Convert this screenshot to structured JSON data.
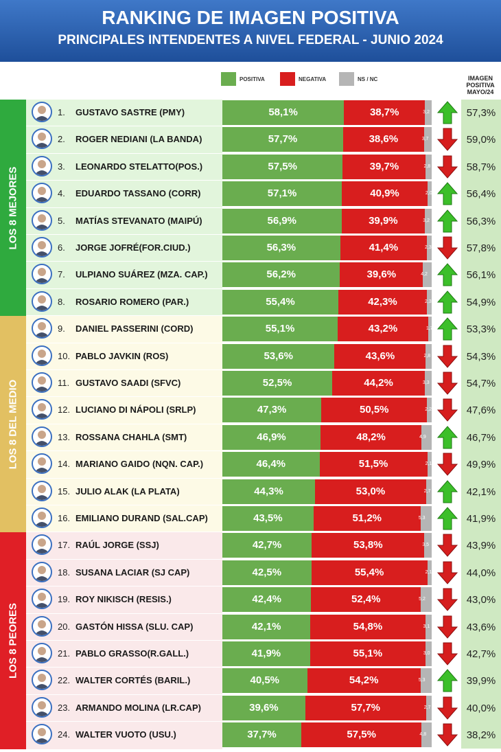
{
  "header": {
    "title": "RANKING DE IMAGEN POSITIVA",
    "subtitle": "PRINCIPALES INTENDENTES A NIVEL FEDERAL - JUNIO 2024"
  },
  "legend": {
    "positive": "POSITIVA",
    "negative": "NEGATIVA",
    "nsnc": "NS / NC"
  },
  "column_header": "IMAGEN POSITIVA MAYO/24",
  "groups": [
    {
      "label": "LOS 8 MEJORES",
      "color": "#2faa3e",
      "bg": "#e2f5dc"
    },
    {
      "label": "LOS 8 DEL MEDIO",
      "color": "#e2c062",
      "bg": "#fdfae6"
    },
    {
      "label": "LOS 8 PEORES",
      "color": "#e01f26",
      "bg": "#fae9ea"
    }
  ],
  "colors": {
    "positive": "#6aad4f",
    "negative": "#d81e1e",
    "nsnc": "#b5b5b5",
    "arrow_up": "#3cbf2a",
    "arrow_down": "#d61e1e"
  },
  "chart_data": {
    "type": "bar",
    "title": "RANKING DE IMAGEN POSITIVA",
    "subtitle": "PRINCIPALES INTENDENTES A NIVEL FEDERAL - JUNIO 2024",
    "categories": [
      "GUSTAVO SASTRE (PMY)",
      "ROGER NEDIANI (LA BANDA)",
      "LEONARDO STELATTO(POS.)",
      "EDUARDO TASSANO (CORR)",
      "MATÍAS STEVANATO (MAIPÚ)",
      "JORGE JOFRÉ(FOR.CIUD.)",
      "ULPIANO SUÁREZ (MZA. CAP.)",
      "ROSARIO ROMERO (PAR.)",
      "DANIEL PASSERINI (CORD)",
      "PABLO JAVKIN (ROS)",
      "GUSTAVO SAADI (SFVC)",
      "LUCIANO DI NÁPOLI (SRLP)",
      "ROSSANA CHAHLA (SMT)",
      "MARIANO GAIDO (NQN. CAP.)",
      "JULIO ALAK (LA PLATA)",
      "EMILIANO DURAND (SAL.CAP)",
      "RAÚL JORGE (SSJ)",
      "SUSANA LACIAR (SJ CAP)",
      "ROY NIKISCH (RESIS.)",
      "GASTÓN HISSA (SLU. CAP)",
      "PABLO GRASSO(R.GALL.)",
      "WALTER CORTÉS (BARIL.)",
      "ARMANDO MOLINA (LR.CAP)",
      "WALTER VUOTO (USU.)"
    ],
    "ranks": [
      "1.",
      "2.",
      "3.",
      "4.",
      "5.",
      "6.",
      "7.",
      "8.",
      "9.",
      "10.",
      "11.",
      "12.",
      "13.",
      "14.",
      "15.",
      "16.",
      "17.",
      "18.",
      "19.",
      "20.",
      "21.",
      "22.",
      "23.",
      "24."
    ],
    "series": [
      {
        "name": "POSITIVA",
        "values": [
          58.1,
          57.7,
          57.5,
          57.1,
          56.9,
          56.3,
          56.2,
          55.4,
          55.1,
          53.6,
          52.5,
          47.3,
          46.9,
          46.4,
          44.3,
          43.5,
          42.7,
          42.5,
          42.4,
          42.1,
          41.9,
          40.5,
          39.6,
          37.7
        ]
      },
      {
        "name": "NEGATIVA",
        "values": [
          38.7,
          38.6,
          39.7,
          40.9,
          39.9,
          41.4,
          39.6,
          42.3,
          43.2,
          43.6,
          44.2,
          50.5,
          48.2,
          51.5,
          53.0,
          51.2,
          53.8,
          55.4,
          52.4,
          54.8,
          55.1,
          54.2,
          57.7,
          57.5
        ]
      },
      {
        "name": "NS / NC",
        "values": [
          3.2,
          3.7,
          2.8,
          2.0,
          3.2,
          2.3,
          4.2,
          2.3,
          1.7,
          2.8,
          3.3,
          2.2,
          4.9,
          2.1,
          2.7,
          5.3,
          3.5,
          2.1,
          5.2,
          3.1,
          3.0,
          5.3,
          2.7,
          4.8
        ]
      }
    ],
    "positive_labels": [
      "58,1%",
      "57,7%",
      "57,5%",
      "57,1%",
      "56,9%",
      "56,3%",
      "56,2%",
      "55,4%",
      "55,1%",
      "53,6%",
      "52,5%",
      "47,3%",
      "46,9%",
      "46,4%",
      "44,3%",
      "43,5%",
      "42,7%",
      "42,5%",
      "42,4%",
      "42,1%",
      "41,9%",
      "40,5%",
      "39,6%",
      "37,7%"
    ],
    "negative_labels": [
      "38,7%",
      "38,6%",
      "39,7%",
      "40,9%",
      "39,9%",
      "41,4%",
      "39,6%",
      "42,3%",
      "43,2%",
      "43,6%",
      "44,2%",
      "50,5%",
      "48,2%",
      "51,5%",
      "53,0%",
      "51,2%",
      "53,8%",
      "55,4%",
      "52,4%",
      "54,8%",
      "55,1%",
      "54,2%",
      "57,7%",
      "57,5%"
    ],
    "nsnc_labels": [
      "3,2",
      "3,7",
      "2,8",
      "2,0",
      "3,2",
      "2,3",
      "4,2",
      "2,3",
      "1,7",
      "2,8",
      "3,3",
      "2,2",
      "4,9",
      "2,1",
      "2,7",
      "5,3",
      "3,5",
      "2,1",
      "5,2",
      "3,1",
      "3,0",
      "5,3",
      "2,7",
      "4,8"
    ],
    "trend": [
      "up",
      "down",
      "down",
      "up",
      "up",
      "down",
      "up",
      "up",
      "up",
      "down",
      "down",
      "down",
      "up",
      "down",
      "up",
      "up",
      "down",
      "down",
      "down",
      "down",
      "down",
      "up",
      "down",
      "down"
    ],
    "may_values": [
      "57,3%",
      "59,0%",
      "58,7%",
      "56,4%",
      "56,3%",
      "57,8%",
      "56,1%",
      "54,9%",
      "53,3%",
      "54,3%",
      "54,7%",
      "47,6%",
      "46,7%",
      "49,9%",
      "42,1%",
      "41,9%",
      "43,9%",
      "44,0%",
      "43,0%",
      "43,6%",
      "42,7%",
      "39,9%",
      "40,0%",
      "38,2%"
    ],
    "xlim": [
      0,
      100
    ]
  }
}
